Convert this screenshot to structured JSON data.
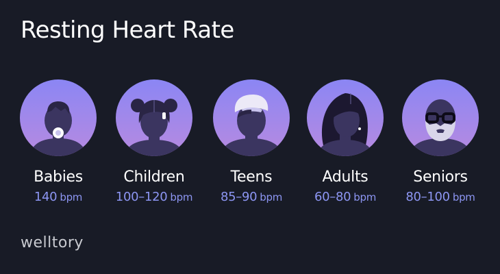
{
  "title": "Resting Heart Rate",
  "groups": [
    {
      "label": "Babies",
      "rate": "140",
      "unit": "bpm",
      "icon": "baby-avatar-icon"
    },
    {
      "label": "Children",
      "rate": "100–120",
      "unit": "bpm",
      "icon": "child-avatar-icon"
    },
    {
      "label": "Teens",
      "rate": "85–90",
      "unit": "bpm",
      "icon": "teen-avatar-icon"
    },
    {
      "label": "Adults",
      "rate": "60–80",
      "unit": "bpm",
      "icon": "adult-avatar-icon"
    },
    {
      "label": "Seniors",
      "rate": "80–100",
      "unit": "bpm",
      "icon": "senior-avatar-icon"
    }
  ],
  "brand": "welltory",
  "colors": {
    "background": "#181b26",
    "accent": "#8d96f3",
    "avatar_top": "#8f87f5",
    "avatar_bottom": "#b58ae2",
    "silhouette": "#3b3560"
  }
}
